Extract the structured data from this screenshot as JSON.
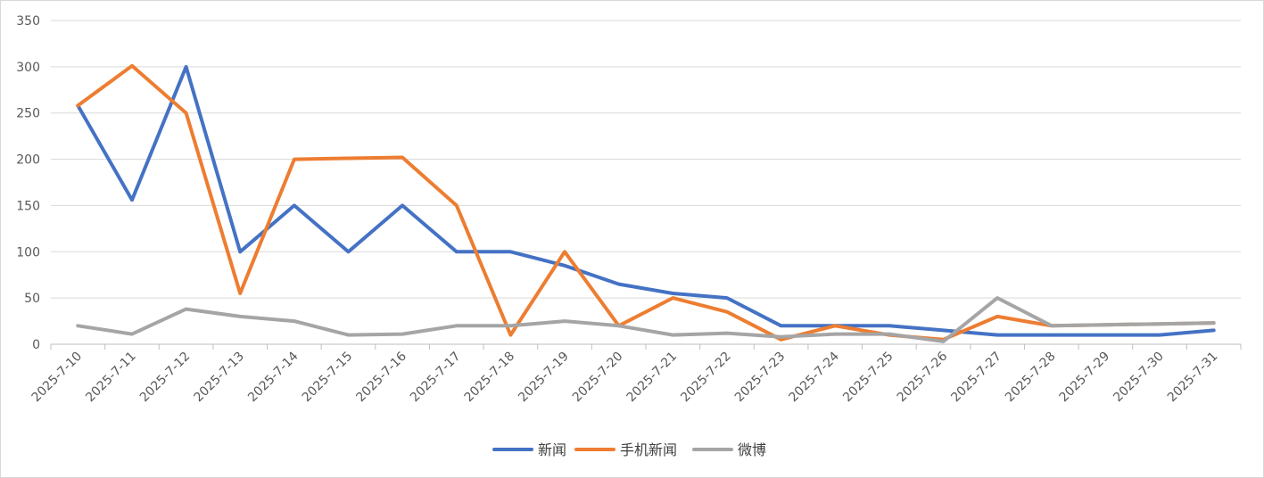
{
  "chart_data": {
    "type": "line",
    "title": "",
    "xlabel": "",
    "ylabel": "",
    "ylim": [
      0,
      350
    ],
    "yticks": [
      0,
      50,
      100,
      150,
      200,
      250,
      300,
      350
    ],
    "grid": true,
    "legend_position": "bottom",
    "categories": [
      "2025-7-10",
      "2025-7-11",
      "2025-7-12",
      "2025-7-13",
      "2025-7-14",
      "2025-7-15",
      "2025-7-16",
      "2025-7-17",
      "2025-7-18",
      "2025-7-19",
      "2025-7-20",
      "2025-7-21",
      "2025-7-22",
      "2025-7-23",
      "2025-7-24",
      "2025-7-25",
      "2025-7-26",
      "2025-7-27",
      "2025-7-28",
      "2025-7-29",
      "2025-7-30",
      "2025-7-31"
    ],
    "series": [
      {
        "name": "新闻",
        "color": "#4472C4",
        "values": [
          258,
          156,
          300,
          100,
          150,
          100,
          150,
          100,
          100,
          85,
          65,
          55,
          50,
          20,
          20,
          20,
          15,
          10,
          10,
          10,
          10,
          15
        ]
      },
      {
        "name": "手机新闻",
        "color": "#ED7D31",
        "values": [
          258,
          301,
          250,
          55,
          200,
          201,
          202,
          150,
          10,
          100,
          20,
          50,
          35,
          5,
          20,
          10,
          5,
          30,
          20,
          21,
          22,
          23
        ]
      },
      {
        "name": "微博",
        "color": "#A5A5A5",
        "values": [
          20,
          11,
          38,
          30,
          25,
          10,
          11,
          20,
          20,
          25,
          20,
          10,
          12,
          8,
          11,
          11,
          3,
          50,
          20,
          21,
          22,
          23
        ]
      }
    ]
  }
}
